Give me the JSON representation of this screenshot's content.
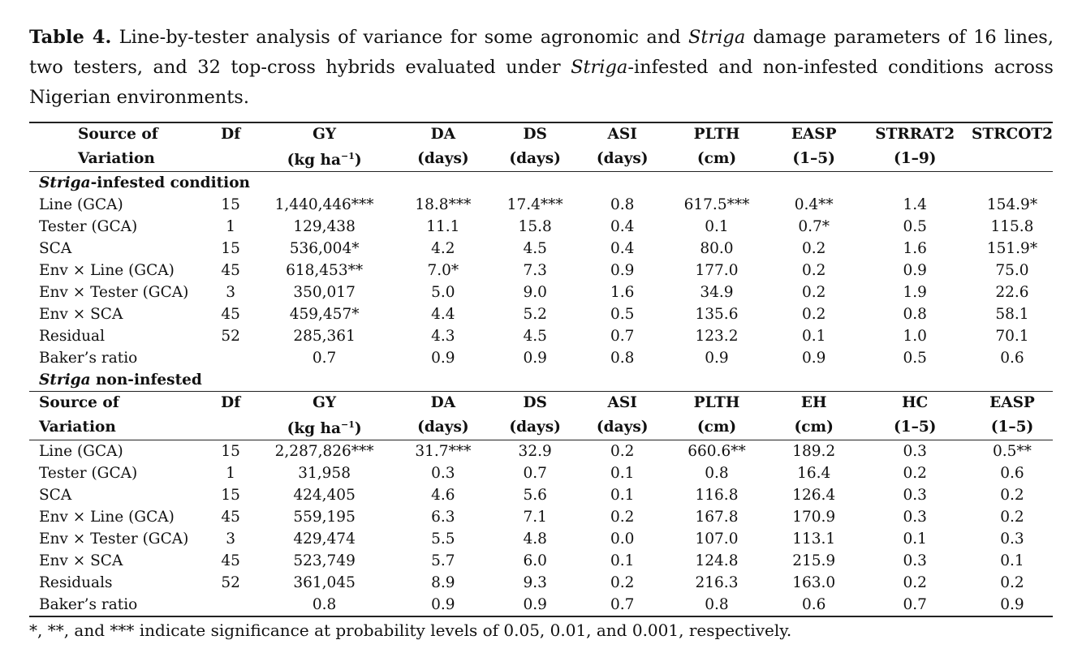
{
  "caption": {
    "label": "Table 4.",
    "part1": " Line-by-tester analysis of variance for some agronomic and ",
    "striga1": "Striga",
    "part2": " damage parameters of 16 lines, two testers, and 32 top-cross hybrids evaluated under ",
    "striga2": "Striga",
    "part3": "-infested and non-infested conditions across Nigerian environments."
  },
  "section1": {
    "title_italic": "Striga",
    "title_rest": "-infested condition",
    "headers_line1": [
      "Source of",
      "Df",
      "GY",
      "DA",
      "DS",
      "ASI",
      "PLTH",
      "EASP",
      "STRRAT2",
      "STRCOT2"
    ],
    "headers_line2": [
      "Variation",
      "",
      "(kg ha−1)",
      "(days)",
      "(days)",
      "(days)",
      "(cm)",
      "(1–5)",
      "(1–9)",
      ""
    ],
    "rows": [
      [
        "Line (GCA)",
        "15",
        "1,440,446***",
        "18.8***",
        "17.4***",
        "0.8",
        "617.5***",
        "0.4**",
        "1.4",
        "154.9*"
      ],
      [
        "Tester (GCA)",
        "1",
        "129,438",
        "11.1",
        "15.8",
        "0.4",
        "0.1",
        "0.7*",
        "0.5",
        "115.8"
      ],
      [
        "SCA",
        "15",
        "536,004*",
        "4.2",
        "4.5",
        "0.4",
        "80.0",
        "0.2",
        "1.6",
        "151.9*"
      ],
      [
        "Env × Line (GCA)",
        "45",
        "618,453**",
        "7.0*",
        "7.3",
        "0.9",
        "177.0",
        "0.2",
        "0.9",
        "75.0"
      ],
      [
        "Env × Tester (GCA)",
        "3",
        "350,017",
        "5.0",
        "9.0",
        "1.6",
        "34.9",
        "0.2",
        "1.9",
        "22.6"
      ],
      [
        "Env × SCA",
        "45",
        "459,457*",
        "4.4",
        "5.2",
        "0.5",
        "135.6",
        "0.2",
        "0.8",
        "58.1"
      ],
      [
        "Residual",
        "52",
        "285,361",
        "4.3",
        "4.5",
        "0.7",
        "123.2",
        "0.1",
        "1.0",
        "70.1"
      ],
      [
        "Baker’s ratio",
        "",
        "0.7",
        "0.9",
        "0.9",
        "0.8",
        "0.9",
        "0.9",
        "0.5",
        "0.6"
      ]
    ]
  },
  "section2": {
    "title_italic": "Striga",
    "title_rest": " non-infested",
    "headers_line1": [
      "Source of",
      "Df",
      "GY",
      "DA",
      "DS",
      "ASI",
      "PLTH",
      "EH",
      "HC",
      "EASP"
    ],
    "headers_line2": [
      "Variation",
      "",
      "(kg ha−1)",
      "(days)",
      "(days)",
      "(days)",
      "(cm)",
      "(cm)",
      "(1–5)",
      "(1–5)"
    ],
    "rows": [
      [
        "Line (GCA)",
        "15",
        "2,287,826***",
        "31.7***",
        "32.9",
        "0.2",
        "660.6**",
        "189.2",
        "0.3",
        "0.5**"
      ],
      [
        "Tester (GCA)",
        "1",
        "31,958",
        "0.3",
        "0.7",
        "0.1",
        "0.8",
        "16.4",
        "0.2",
        "0.6"
      ],
      [
        "SCA",
        "15",
        "424,405",
        "4.6",
        "5.6",
        "0.1",
        "116.8",
        "126.4",
        "0.3",
        "0.2"
      ],
      [
        "Env × Line (GCA)",
        "45",
        "559,195",
        "6.3",
        "7.1",
        "0.2",
        "167.8",
        "170.9",
        "0.3",
        "0.2"
      ],
      [
        "Env × Tester (GCA)",
        "3",
        "429,474",
        "5.5",
        "4.8",
        "0.0",
        "107.0",
        "113.1",
        "0.1",
        "0.3"
      ],
      [
        "Env × SCA",
        "45",
        "523,749",
        "5.7",
        "6.0",
        "0.1",
        "124.8",
        "215.9",
        "0.3",
        "0.1"
      ],
      [
        "Residuals",
        "52",
        "361,045",
        "8.9",
        "9.3",
        "0.2",
        "216.3",
        "163.0",
        "0.2",
        "0.2"
      ],
      [
        "Baker’s ratio",
        "",
        "0.8",
        "0.9",
        "0.9",
        "0.7",
        "0.8",
        "0.6",
        "0.7",
        "0.9"
      ]
    ]
  },
  "footnote": "*, **, and *** indicate significance at probability levels of 0.05, 0.01, and 0.001, respectively."
}
